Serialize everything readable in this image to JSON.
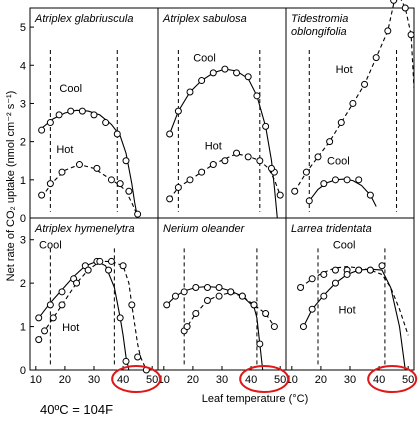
{
  "figure": {
    "ylabel": "Net rate of CO₂ uptake (nmol cm⁻² s⁻¹)",
    "xlabel": "Leaf temperature (°C)",
    "note": "40ºC = 104F",
    "highlight_color": "#e01818",
    "line_color": "#000000"
  },
  "chart_data": [
    {
      "type": "line",
      "title": "Atriplex glabriuscula",
      "row": 0,
      "col": 0,
      "xlim": [
        8,
        52
      ],
      "ylim": [
        0,
        5.5
      ],
      "yticks": [
        "0",
        "1",
        "2",
        "3",
        "4",
        "5"
      ],
      "xticks": [],
      "vlines": [
        15,
        38
      ],
      "series": [
        {
          "name": "Cool",
          "style": "solid",
          "x": [
            12,
            15,
            18,
            22,
            26,
            30,
            34,
            38,
            41
          ],
          "y": [
            2.3,
            2.5,
            2.7,
            2.8,
            2.8,
            2.7,
            2.5,
            2.2,
            1.5
          ],
          "curve_x": [
            12,
            16,
            20,
            24,
            28,
            32,
            36,
            39,
            41,
            43,
            44,
            45
          ],
          "curve_y": [
            2.35,
            2.6,
            2.75,
            2.82,
            2.8,
            2.7,
            2.45,
            2.15,
            1.7,
            0.9,
            0.4,
            0
          ]
        },
        {
          "name": "Hot",
          "style": "dashed",
          "x": [
            12,
            15,
            19,
            25,
            31,
            36,
            39,
            42,
            45
          ],
          "y": [
            0.6,
            0.9,
            1.2,
            1.4,
            1.3,
            1.0,
            0.9,
            0.7,
            0.1
          ],
          "curve_x": [
            12,
            16,
            20,
            25,
            30,
            35,
            39,
            41,
            43,
            45
          ],
          "curve_y": [
            0.55,
            0.95,
            1.25,
            1.4,
            1.3,
            1.05,
            0.85,
            0.7,
            0.4,
            0.05
          ]
        }
      ],
      "annotations": [
        {
          "text": "Cool",
          "x": 22,
          "y": 3.3
        },
        {
          "text": "Hot",
          "x": 20,
          "y": 1.7
        }
      ]
    },
    {
      "type": "line",
      "title": "Atriplex sabulosa",
      "row": 0,
      "col": 1,
      "xlim": [
        8,
        52
      ],
      "ylim": [
        0,
        5.5
      ],
      "yticks": [],
      "xticks": [],
      "vlines": [
        15,
        43
      ],
      "series": [
        {
          "name": "Cool",
          "style": "solid",
          "x": [
            12,
            15,
            19,
            23,
            27,
            31,
            35,
            39,
            42,
            45,
            48
          ],
          "y": [
            2.2,
            2.8,
            3.3,
            3.6,
            3.8,
            3.9,
            3.8,
            3.7,
            3.2,
            2.4,
            1.2
          ],
          "curve_x": [
            12,
            15,
            19,
            23,
            27,
            31,
            35,
            39,
            42,
            45,
            47,
            48,
            49
          ],
          "curve_y": [
            2.2,
            2.8,
            3.3,
            3.6,
            3.8,
            3.9,
            3.85,
            3.65,
            3.2,
            2.4,
            1.5,
            0.8,
            0
          ]
        },
        {
          "name": "Hot",
          "style": "dashed",
          "x": [
            12,
            15,
            19,
            23,
            27,
            31,
            35,
            39,
            43,
            47,
            50
          ],
          "y": [
            0.5,
            0.8,
            1.0,
            1.2,
            1.4,
            1.5,
            1.7,
            1.6,
            1.5,
            1.3,
            0.6
          ],
          "curve_x": [
            12,
            15,
            19,
            23,
            27,
            31,
            35,
            39,
            43,
            46,
            48,
            50
          ],
          "curve_y": [
            0.5,
            0.8,
            1.0,
            1.2,
            1.4,
            1.55,
            1.68,
            1.62,
            1.5,
            1.3,
            1.0,
            0.6
          ]
        }
      ],
      "annotations": [
        {
          "text": "Cool",
          "x": 24,
          "y": 4.1
        },
        {
          "text": "Hot",
          "x": 27,
          "y": 1.8
        }
      ]
    },
    {
      "type": "line",
      "title": "Tidestromia oblongifolia",
      "row": 0,
      "col": 2,
      "xlim": [
        8,
        52
      ],
      "ylim": [
        0,
        5.5
      ],
      "yticks": [],
      "xticks": [],
      "vlines": [
        16,
        46
      ],
      "series": [
        {
          "name": "Hot",
          "style": "dashed",
          "x": [
            11,
            15,
            19,
            23,
            27,
            31,
            35,
            39,
            43,
            45,
            47,
            49,
            51,
            52
          ],
          "y": [
            0.7,
            1.2,
            1.6,
            2.0,
            2.5,
            3.0,
            3.5,
            4.2,
            4.9,
            5.7,
            5.8,
            5.5,
            4.8,
            4.0
          ],
          "curve_x": [
            11,
            15,
            19,
            23,
            27,
            31,
            35,
            39,
            43,
            45,
            47,
            49,
            51,
            52
          ],
          "curve_y": [
            0.7,
            1.2,
            1.6,
            2.0,
            2.5,
            3.0,
            3.5,
            4.2,
            4.9,
            5.6,
            5.8,
            5.5,
            4.8,
            3.4
          ]
        },
        {
          "name": "Cool",
          "style": "solid",
          "x": [
            16,
            21,
            25,
            29,
            33,
            37
          ],
          "y": [
            0.45,
            0.9,
            1.0,
            1.0,
            1.0,
            0.6
          ],
          "curve_x": [
            16,
            19,
            22,
            25,
            28,
            31,
            34,
            37,
            39
          ],
          "curve_y": [
            0.45,
            0.75,
            0.92,
            1.0,
            1.02,
            0.98,
            0.85,
            0.6,
            0.3
          ]
        }
      ],
      "annotations": [
        {
          "text": "Hot",
          "x": 28,
          "y": 3.8
        },
        {
          "text": "Cool",
          "x": 26,
          "y": 1.4
        }
      ]
    },
    {
      "type": "line",
      "title": "Atriplex hymenelytra",
      "row": 1,
      "col": 0,
      "xlim": [
        8,
        52
      ],
      "ylim": [
        0,
        3.5
      ],
      "yticks": [
        "0",
        "1",
        "2",
        "3"
      ],
      "xticks": [
        "10",
        "20",
        "30",
        "40",
        "50"
      ],
      "vlines": [
        15,
        37
      ],
      "series": [
        {
          "name": "Cool",
          "style": "solid",
          "x": [
            11,
            15,
            19,
            23,
            27,
            31,
            35,
            39,
            41
          ],
          "y": [
            1.2,
            1.5,
            1.8,
            2.1,
            2.4,
            2.5,
            2.3,
            1.2,
            0.2
          ],
          "curve_x": [
            11,
            15,
            19,
            23,
            27,
            31,
            34,
            37,
            39,
            40,
            41,
            42
          ],
          "curve_y": [
            1.2,
            1.55,
            1.85,
            2.15,
            2.4,
            2.5,
            2.4,
            1.9,
            1.2,
            0.8,
            0.3,
            0
          ]
        },
        {
          "name": "Hot",
          "style": "dashed",
          "x": [
            11,
            13,
            16,
            19,
            24,
            28,
            32,
            36,
            40,
            43,
            45,
            48
          ],
          "y": [
            0.7,
            0.9,
            1.2,
            1.5,
            2.0,
            2.3,
            2.5,
            2.5,
            2.4,
            1.5,
            0.3,
            0.0
          ],
          "curve_x": [
            11,
            13,
            16,
            19,
            24,
            28,
            32,
            36,
            40,
            42,
            43,
            45,
            46,
            48
          ],
          "curve_y": [
            0.7,
            0.9,
            1.2,
            1.5,
            2.0,
            2.3,
            2.5,
            2.5,
            2.4,
            2.0,
            1.5,
            0.6,
            0.3,
            0
          ]
        }
      ],
      "annotations": [
        {
          "text": "Cool",
          "x": 15,
          "y": 2.8
        },
        {
          "text": "Hot",
          "x": 22,
          "y": 0.9
        }
      ]
    },
    {
      "type": "line",
      "title": "Nerium oleander",
      "row": 1,
      "col": 1,
      "xlim": [
        8,
        52
      ],
      "ylim": [
        0,
        3.5
      ],
      "yticks": [],
      "xticks": [
        "10",
        "20",
        "30",
        "40",
        "50"
      ],
      "vlines": [
        17,
        42
      ],
      "series": [
        {
          "name": "Cool",
          "style": "solid",
          "x": [
            11,
            14,
            17,
            21,
            25,
            29,
            33,
            37,
            41,
            43
          ],
          "y": [
            1.5,
            1.7,
            1.8,
            1.9,
            1.9,
            1.9,
            1.8,
            1.7,
            1.5,
            0.6
          ],
          "curve_x": [
            11,
            14,
            17,
            21,
            25,
            29,
            33,
            37,
            41,
            42,
            43,
            44
          ],
          "curve_y": [
            1.5,
            1.7,
            1.82,
            1.9,
            1.92,
            1.9,
            1.82,
            1.7,
            1.45,
            1.2,
            0.6,
            0
          ]
        },
        {
          "name": "Hot",
          "style": "dashed",
          "x": [
            17,
            18,
            21,
            25,
            29,
            33,
            37,
            41,
            45,
            48
          ],
          "y": [
            0.9,
            1.0,
            1.3,
            1.6,
            1.7,
            1.8,
            1.7,
            1.5,
            1.3,
            1.0
          ],
          "curve_x": [
            17,
            18,
            21,
            25,
            29,
            33,
            37,
            41,
            45,
            48
          ],
          "curve_y": [
            0.9,
            1.0,
            1.3,
            1.6,
            1.72,
            1.78,
            1.7,
            1.5,
            1.3,
            1.0
          ]
        }
      ],
      "annotations": []
    },
    {
      "type": "line",
      "title": "Larrea tridentata",
      "row": 1,
      "col": 2,
      "xlim": [
        8,
        52
      ],
      "ylim": [
        0,
        3.5
      ],
      "yticks": [],
      "xticks": [
        "10",
        "20",
        "30",
        "40",
        "50"
      ],
      "vlines": [
        19,
        42
      ],
      "series": [
        {
          "name": "Cool",
          "style": "dashed",
          "x": [
            13,
            17,
            21,
            25,
            29,
            33,
            37
          ],
          "y": [
            1.9,
            2.1,
            2.2,
            2.3,
            2.3,
            2.3,
            2.3
          ],
          "curve_x": [
            13,
            17,
            21,
            25,
            29,
            33,
            37,
            41,
            44,
            47,
            50
          ],
          "curve_y": [
            1.9,
            2.1,
            2.25,
            2.35,
            2.38,
            2.35,
            2.3,
            2.2,
            1.9,
            1.4,
            0.8
          ]
        },
        {
          "name": "Hot",
          "style": "solid",
          "x": [
            14,
            17,
            21,
            25,
            29,
            33,
            37,
            41
          ],
          "y": [
            1.0,
            1.4,
            1.7,
            2.0,
            2.2,
            2.3,
            2.3,
            2.4
          ],
          "curve_x": [
            14,
            17,
            21,
            25,
            29,
            33,
            37,
            41,
            44,
            47,
            49
          ],
          "curve_y": [
            1.0,
            1.4,
            1.72,
            2.0,
            2.2,
            2.3,
            2.32,
            2.3,
            1.9,
            1.0,
            0
          ]
        }
      ],
      "annotations": [
        {
          "text": "Cool",
          "x": 28,
          "y": 2.8
        },
        {
          "text": "Hot",
          "x": 29,
          "y": 1.3
        }
      ]
    }
  ]
}
